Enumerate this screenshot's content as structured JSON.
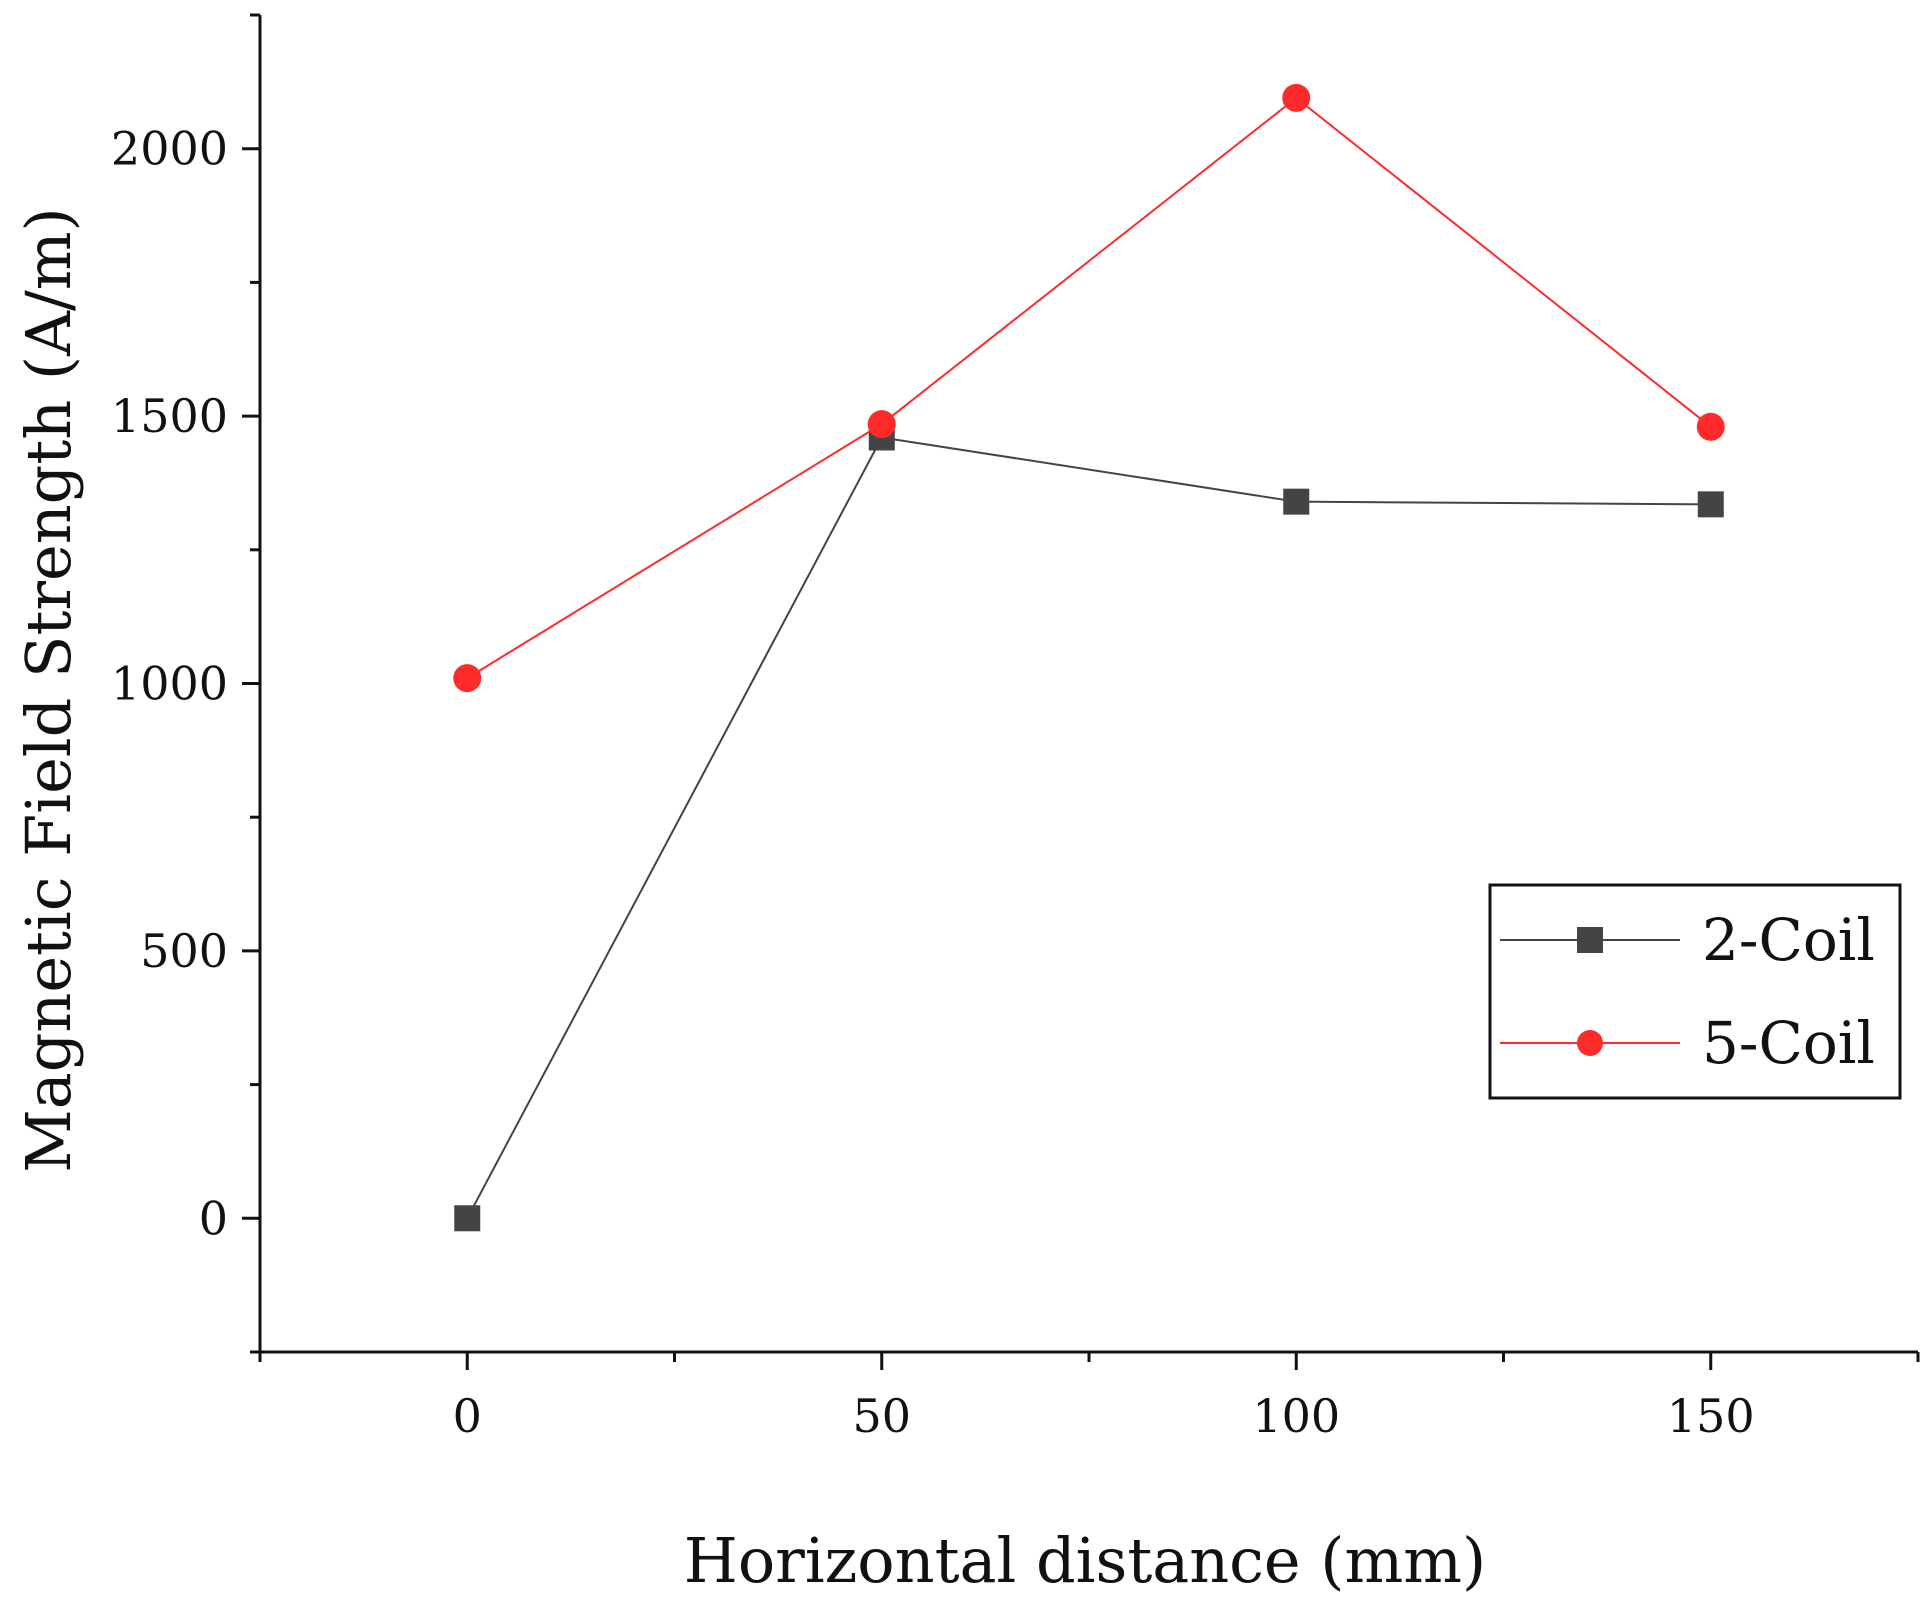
{
  "chart_data": {
    "type": "line",
    "title": "",
    "xlabel": "Horizontal distance (mm)",
    "ylabel": "Magnetic Field Strength (A/m)",
    "x": [
      0,
      50,
      100,
      150
    ],
    "xlim": [
      -25,
      175
    ],
    "ylim": [
      -250,
      2250
    ],
    "x_major_ticks": [
      0,
      50,
      100,
      150
    ],
    "x_minor_ticks": [
      -25,
      25,
      75,
      125,
      175
    ],
    "x_tick_labels": [
      "0",
      "50",
      "100",
      "150"
    ],
    "y_major_ticks": [
      0,
      500,
      1000,
      1500,
      2000
    ],
    "y_minor_ticks": [
      -250,
      250,
      750,
      1250,
      1750,
      2250
    ],
    "y_tick_labels": [
      "0",
      "500",
      "1000",
      "1500",
      "2000"
    ],
    "grid": false,
    "legend_position": "right",
    "series": [
      {
        "name": "2-Coil",
        "values": [
          0,
          1460,
          1340,
          1335
        ],
        "color": "#444444",
        "marker": "square"
      },
      {
        "name": "5-Coil",
        "values": [
          1010,
          1485,
          2095,
          1480
        ],
        "color": "#ff2b2b",
        "marker": "circle"
      }
    ]
  }
}
